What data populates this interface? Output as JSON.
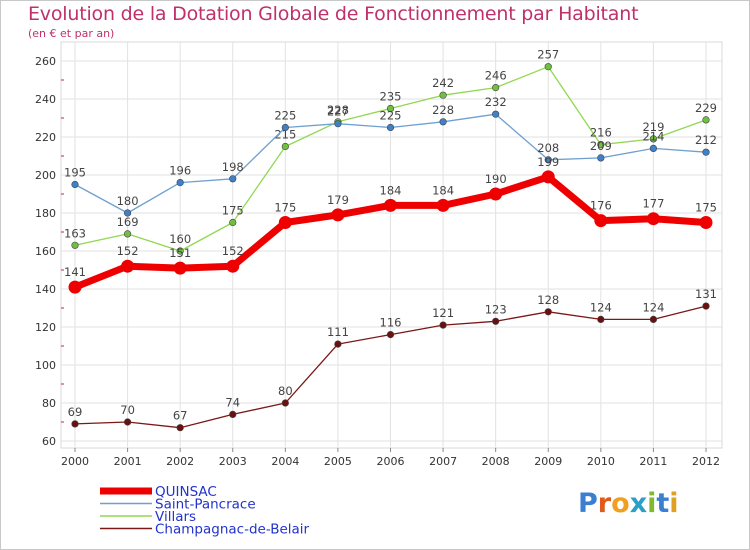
{
  "title": "Evolution de la Dotation Globale de Fonctionnement par Habitant",
  "subtitle": "(en € et par an)",
  "logo": {
    "text": "Proxiti",
    "colors": [
      "#3a7fd0",
      "#e05a1a",
      "#f0a020",
      "#2aa0c8",
      "#80b830",
      "#3a7fd0",
      "#e0a020"
    ]
  },
  "chart_data": {
    "type": "line",
    "title": "Evolution de la Dotation Globale de Fonctionnement par Habitant",
    "ylabel": "(en € et par an)",
    "xlabel": "",
    "categories": [
      "2000",
      "2001",
      "2002",
      "2003",
      "2004",
      "2005",
      "2006",
      "2007",
      "2008",
      "2009",
      "2010",
      "2011",
      "2012"
    ],
    "ylim": [
      60,
      260
    ],
    "yticks": [
      60,
      80,
      100,
      120,
      140,
      160,
      180,
      200,
      220,
      240,
      260
    ],
    "grid": true,
    "legend_position": "bottom-left",
    "series": [
      {
        "name": "Villars",
        "color": "#90d850",
        "marker": "#70c040",
        "values": [
          163,
          169,
          160,
          175,
          215,
          228,
          235,
          242,
          246,
          257,
          216,
          219,
          229
        ]
      },
      {
        "name": "Saint-Pancrace",
        "color": "#6fa0d0",
        "marker": "#3f80c8",
        "values": [
          195,
          180,
          196,
          198,
          225,
          227,
          225,
          228,
          232,
          208,
          209,
          214,
          212
        ]
      },
      {
        "name": "Champagnac-de-Belair",
        "color": "#7a1818",
        "marker": "#6a1010",
        "values": [
          69,
          70,
          67,
          74,
          80,
          111,
          116,
          121,
          123,
          128,
          124,
          124,
          131
        ]
      },
      {
        "name": "QUINSAC",
        "color": "#ee0000",
        "marker": "#ee0000",
        "values": [
          141,
          152,
          151,
          152,
          175,
          179,
          184,
          184,
          190,
          199,
          176,
          177,
          175
        ]
      }
    ],
    "legend_order": [
      "QUINSAC",
      "Saint-Pancrace",
      "Villars",
      "Champagnac-de-Belair"
    ]
  }
}
